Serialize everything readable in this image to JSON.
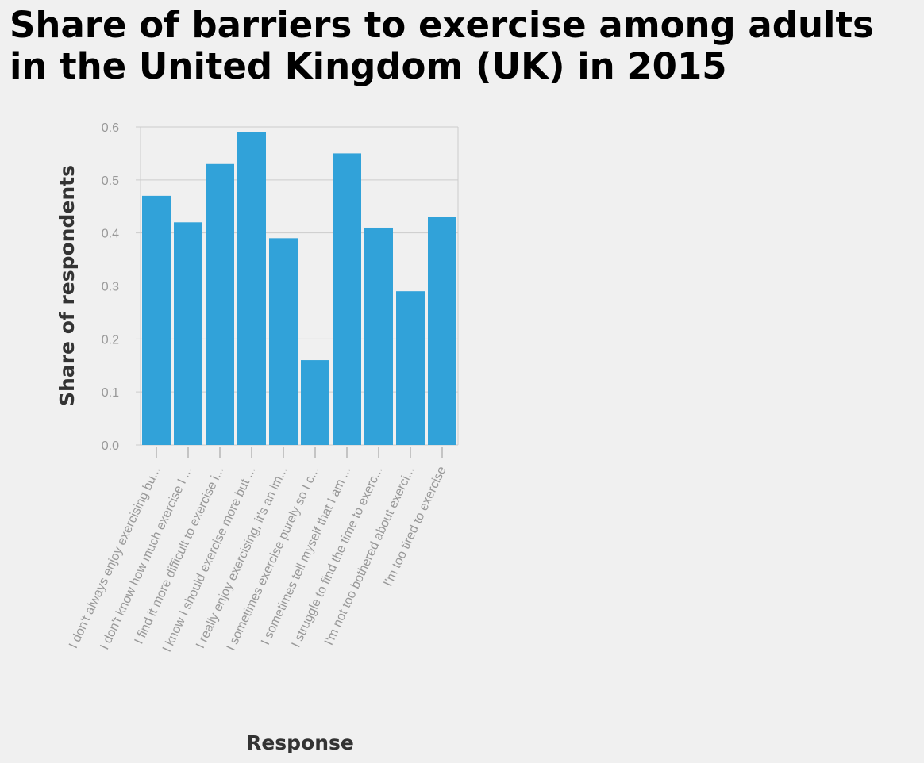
{
  "title": "Share of barriers to exercise among adults in the United Kingdom (UK) in 2015",
  "colors": {
    "bar": "#31a2d9",
    "grid": "#cccccc",
    "background": "#f0f0f0"
  },
  "chart_data": {
    "type": "bar",
    "title": "Share of barriers to exercise among adults in the United Kingdom (UK) in 2015",
    "xlabel": "Response",
    "ylabel": "Share of respondents",
    "ylim": [
      0,
      0.6
    ],
    "yticks": [
      "0.0",
      "0.1",
      "0.2",
      "0.3",
      "0.4",
      "0.5",
      "0.6"
    ],
    "grid": true,
    "categories": [
      "I don't always enjoy exercising bu...",
      "I don't know how much exercise I ...",
      "I find it more difficult to exercise i...",
      "I know I should exercise more but ...",
      "I really enjoy exercising, it's an im...",
      "I sometimes exercise purely so I c...",
      "I sometimes tell myself that I am ...",
      "I struggle to find the time to exerc...",
      "I'm not too bothered about exerci...",
      "I'm too tired to exercise"
    ],
    "values": [
      0.47,
      0.42,
      0.53,
      0.59,
      0.39,
      0.16,
      0.55,
      0.41,
      0.29,
      0.43
    ]
  }
}
